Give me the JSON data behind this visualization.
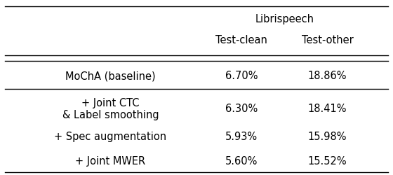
{
  "title": "Librispeech",
  "col2_header": "Test-clean",
  "col3_header": "Test-other",
  "rows": [
    [
      "MoChA (baseline)",
      "6.70%",
      "18.86%"
    ],
    [
      "+ Joint CTC\n& Label smoothing",
      "6.30%",
      "18.41%"
    ],
    [
      "+ Spec augmentation",
      "5.93%",
      "15.98%"
    ],
    [
      "+ Joint MWER",
      "5.60%",
      "15.52%"
    ]
  ],
  "background_color": "#ffffff",
  "text_color": "#000000",
  "font_size": 10.5
}
